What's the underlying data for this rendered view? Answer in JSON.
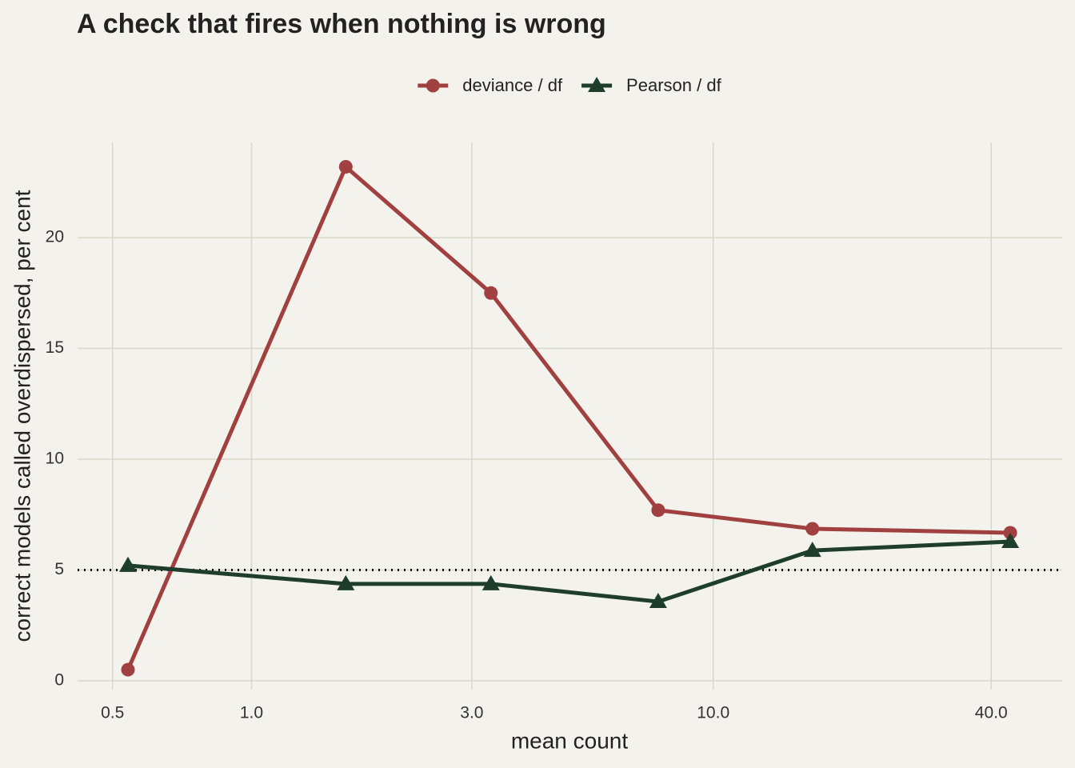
{
  "chart_data": {
    "type": "line",
    "title": "A check that fires when nothing is wrong",
    "x_label": "mean count",
    "y_label": "correct models called overdispersed, per cent",
    "x": [
      0.54,
      1.6,
      3.3,
      7.6,
      16.4,
      44
    ],
    "series": [
      {
        "name": "deviance / df",
        "color": "#a14040",
        "marker": "circle",
        "values": [
          0.5,
          23.2,
          17.5,
          7.7,
          6.86,
          6.68
        ]
      },
      {
        "name": "Pearson / df",
        "color": "#1f3d2b",
        "marker": "triangle",
        "values": [
          5.2,
          4.37,
          4.37,
          3.57,
          5.88,
          6.28
        ]
      }
    ],
    "x_log": true,
    "xlim": [
      0.42,
      57
    ],
    "xticks": [
      0.5,
      {
        "value": 1,
        "label": "1.0"
      },
      {
        "value": 3,
        "label": "3.0"
      },
      {
        "value": 10,
        "label": "10.0"
      },
      {
        "value": 40,
        "label": "40.0"
      }
    ],
    "ylim": [
      -0.4,
      24.3
    ],
    "yticks": [
      0,
      5,
      10,
      15,
      20
    ],
    "reference_line": 5,
    "grid": true,
    "legend_position": "top"
  }
}
